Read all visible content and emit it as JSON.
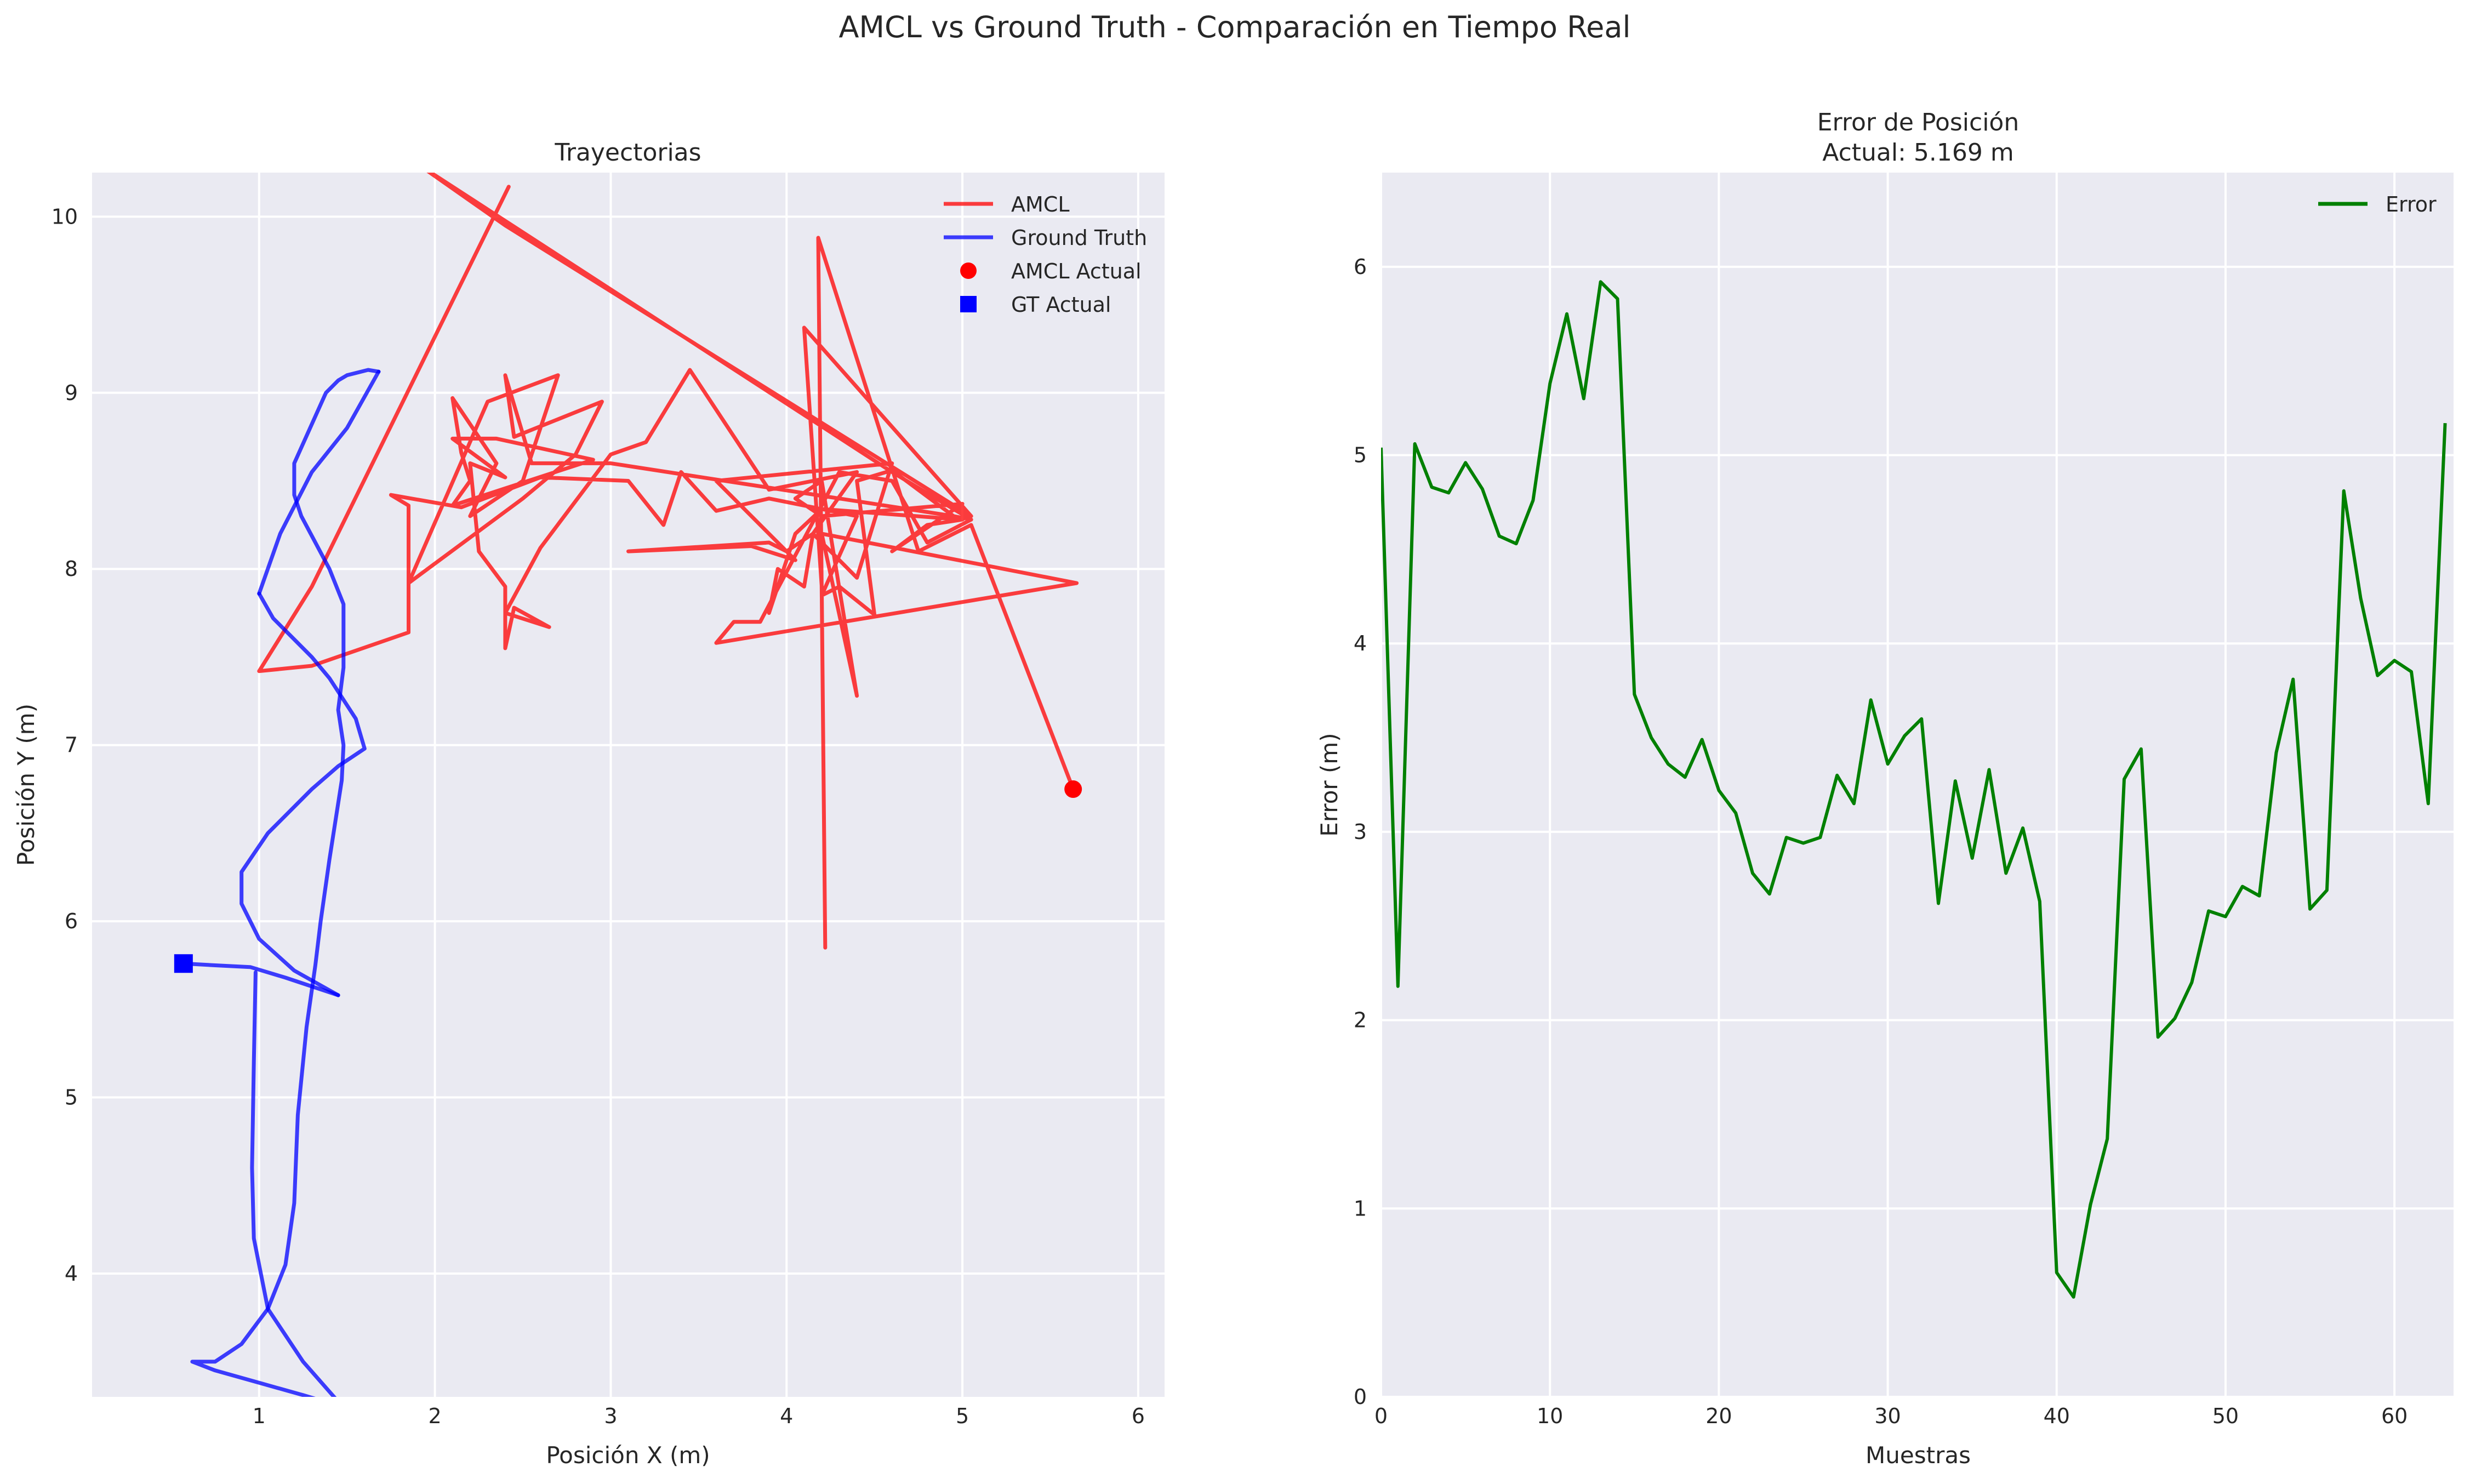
{
  "figure": {
    "suptitle": "AMCL vs Ground Truth - Comparación en Tiempo Real"
  },
  "chart_data": [
    {
      "type": "line",
      "title": "Trayectorias",
      "xlabel": "Posición X (m)",
      "ylabel": "Posición Y (m)",
      "xlim": [
        0.05,
        6.15
      ],
      "ylim": [
        3.3,
        10.25
      ],
      "xticks": [
        1,
        2,
        3,
        4,
        5,
        6
      ],
      "yticks": [
        4,
        5,
        6,
        7,
        8,
        9,
        10
      ],
      "grid": true,
      "legend_position": "top-right",
      "series": [
        {
          "name": "AMCL",
          "color": "#ff0000",
          "points": [
            [
              2.42,
              10.17
            ],
            [
              1.3,
              7.9
            ],
            [
              1.0,
              7.42
            ],
            [
              1.3,
              7.45
            ],
            [
              1.85,
              7.64
            ],
            [
              1.85,
              8.36
            ],
            [
              1.75,
              8.42
            ],
            [
              2.15,
              8.35
            ],
            [
              2.6,
              8.52
            ],
            [
              3.1,
              8.5
            ],
            [
              3.3,
              8.25
            ],
            [
              3.4,
              8.55
            ],
            [
              3.6,
              8.33
            ],
            [
              3.9,
              8.4
            ],
            [
              4.4,
              8.3
            ],
            [
              4.2,
              7.85
            ],
            [
              4.3,
              7.9
            ],
            [
              4.5,
              7.74
            ],
            [
              4.4,
              8.5
            ],
            [
              4.6,
              8.56
            ],
            [
              4.95,
              8.3
            ],
            [
              5.05,
              8.28
            ],
            [
              4.8,
              8.15
            ],
            [
              4.6,
              8.5
            ],
            [
              4.3,
              8.55
            ],
            [
              3.85,
              7.7
            ],
            [
              3.7,
              7.7
            ],
            [
              3.6,
              7.58
            ],
            [
              5.65,
              7.92
            ],
            [
              4.2,
              8.2
            ],
            [
              4.4,
              7.28
            ],
            [
              4.2,
              8.5
            ],
            [
              4.05,
              8.4
            ],
            [
              4.2,
              8.3
            ],
            [
              5.0,
              8.37
            ],
            [
              4.6,
              8.1
            ],
            [
              4.8,
              8.25
            ],
            [
              5.0,
              8.28
            ],
            [
              4.2,
              8.34
            ],
            [
              4.05,
              8.2
            ],
            [
              3.9,
              7.75
            ],
            [
              3.95,
              8.0
            ],
            [
              4.1,
              7.9
            ],
            [
              4.15,
              8.2
            ],
            [
              4.0,
              8.1
            ],
            [
              3.9,
              8.15
            ],
            [
              3.1,
              8.1
            ],
            [
              3.8,
              8.13
            ],
            [
              4.05,
              8.05
            ],
            [
              3.6,
              8.5
            ],
            [
              4.6,
              8.6
            ],
            [
              4.4,
              7.95
            ],
            [
              4.15,
              8.2
            ],
            [
              4.4,
              8.55
            ],
            [
              3.9,
              8.45
            ],
            [
              3.45,
              9.13
            ],
            [
              3.2,
              8.72
            ],
            [
              3.0,
              8.65
            ],
            [
              2.6,
              8.12
            ],
            [
              2.4,
              7.75
            ],
            [
              2.65,
              7.67
            ],
            [
              2.45,
              7.78
            ],
            [
              2.4,
              7.55
            ],
            [
              2.4,
              7.9
            ],
            [
              2.25,
              8.1
            ],
            [
              2.2,
              8.6
            ],
            [
              2.4,
              8.52
            ],
            [
              2.1,
              8.74
            ],
            [
              2.35,
              8.74
            ],
            [
              2.9,
              8.62
            ],
            [
              2.1,
              8.36
            ],
            [
              2.2,
              8.5
            ],
            [
              2.15,
              8.66
            ],
            [
              2.1,
              8.97
            ],
            [
              2.35,
              8.6
            ],
            [
              2.2,
              8.3
            ],
            [
              2.5,
              8.5
            ],
            [
              2.7,
              9.1
            ],
            [
              2.3,
              8.95
            ],
            [
              1.85,
              7.92
            ],
            [
              2.5,
              8.4
            ],
            [
              2.8,
              8.65
            ],
            [
              2.95,
              8.95
            ],
            [
              2.45,
              8.75
            ],
            [
              2.4,
              9.1
            ],
            [
              2.55,
              8.6
            ],
            [
              3.0,
              8.6
            ],
            [
              4.95,
              8.3
            ],
            [
              5.05,
              8.28
            ],
            [
              4.6,
              8.55
            ],
            [
              1.9,
              10.3
            ],
            [
              2.4,
              9.95
            ],
            [
              5.05,
              8.3
            ],
            [
              4.1,
              9.37
            ],
            [
              4.2,
              7.9
            ],
            [
              4.22,
              5.85
            ],
            [
              4.18,
              9.88
            ],
            [
              4.75,
              8.1
            ],
            [
              5.05,
              8.25
            ],
            [
              5.63,
              6.75
            ]
          ]
        },
        {
          "name": "Ground Truth",
          "color": "#0000ff",
          "points": [
            [
              1.68,
              9.12
            ],
            [
              1.62,
              9.13
            ],
            [
              1.5,
              9.1
            ],
            [
              1.45,
              9.07
            ],
            [
              1.38,
              9.0
            ],
            [
              1.2,
              8.6
            ],
            [
              1.2,
              8.42
            ],
            [
              1.24,
              8.3
            ],
            [
              1.4,
              8.0
            ],
            [
              1.48,
              7.8
            ],
            [
              1.48,
              7.44
            ],
            [
              1.45,
              7.2
            ],
            [
              1.48,
              7.0
            ],
            [
              1.47,
              6.8
            ],
            [
              1.4,
              6.35
            ],
            [
              1.35,
              6.0
            ],
            [
              1.32,
              5.75
            ],
            [
              1.27,
              5.4
            ],
            [
              1.22,
              4.9
            ],
            [
              1.2,
              4.4
            ],
            [
              1.15,
              4.05
            ],
            [
              1.05,
              3.8
            ],
            [
              0.9,
              3.6
            ],
            [
              0.75,
              3.5
            ],
            [
              0.62,
              3.5
            ],
            [
              0.75,
              3.45
            ],
            [
              1.0,
              3.38
            ],
            [
              1.25,
              3.31
            ],
            [
              1.35,
              3.28
            ],
            [
              1.47,
              3.25
            ]
          ]
        },
        {
          "name": "Ground Truth",
          "color": "#0000ff",
          "points": [
            [
              1.47,
              3.25
            ],
            [
              1.25,
              3.5
            ],
            [
              1.05,
              3.8
            ],
            [
              0.97,
              4.2
            ],
            [
              0.96,
              4.6
            ],
            [
              0.97,
              5.2
            ],
            [
              0.98,
              5.71
            ]
          ]
        },
        {
          "name": "Ground Truth",
          "color": "#0000ff",
          "points": [
            [
              1.68,
              9.12
            ],
            [
              1.5,
              8.8
            ],
            [
              1.3,
              8.55
            ],
            [
              1.12,
              8.2
            ],
            [
              1.0,
              7.86
            ]
          ]
        },
        {
          "name": "Ground Truth",
          "color": "#0000ff",
          "points": [
            [
              1.45,
              5.58
            ],
            [
              1.15,
              5.68
            ],
            [
              0.95,
              5.74
            ],
            [
              0.75,
              5.75
            ],
            [
              0.57,
              5.76
            ]
          ]
        },
        {
          "name": "Ground Truth",
          "color": "#0000ff",
          "points": [
            [
              1.45,
              5.58
            ],
            [
              1.2,
              5.72
            ],
            [
              1.0,
              5.9
            ],
            [
              0.9,
              6.1
            ],
            [
              0.9,
              6.28
            ],
            [
              1.05,
              6.5
            ],
            [
              1.3,
              6.75
            ],
            [
              1.45,
              6.88
            ],
            [
              1.6,
              6.98
            ],
            [
              1.55,
              7.15
            ],
            [
              1.4,
              7.38
            ],
            [
              1.3,
              7.5
            ],
            [
              1.18,
              7.62
            ],
            [
              1.08,
              7.72
            ],
            [
              1.0,
              7.86
            ]
          ]
        },
        {
          "name": "AMCL Actual",
          "color": "#ff0000",
          "marker": "circle",
          "x": 5.63,
          "y": 6.75
        },
        {
          "name": "GT Actual",
          "color": "#0000ff",
          "marker": "square",
          "x": 0.57,
          "y": 5.76
        }
      ]
    },
    {
      "type": "line",
      "title": "Error de Posición",
      "subtitle": "Actual: 5.169 m",
      "xlabel": "Muestras",
      "ylabel": "Error (m)",
      "xlim": [
        0,
        63.5
      ],
      "ylim": [
        0,
        6.5
      ],
      "xticks": [
        0,
        10,
        20,
        30,
        40,
        50,
        60
      ],
      "yticks": [
        0,
        1,
        2,
        3,
        4,
        5,
        6
      ],
      "grid": true,
      "legend_position": "top-right",
      "series": [
        {
          "name": "Error",
          "color": "#008000",
          "x": [
            0,
            1,
            2,
            3,
            4,
            5,
            6,
            7,
            8,
            9,
            10,
            11,
            12,
            13,
            14,
            15,
            16,
            17,
            18,
            19,
            20,
            21,
            22,
            23,
            24,
            25,
            26,
            27,
            28,
            29,
            30,
            31,
            32,
            33,
            34,
            35,
            36,
            37,
            38,
            39,
            40,
            41,
            42,
            43,
            44,
            45,
            46,
            47,
            48,
            49,
            50,
            51,
            52,
            53,
            54,
            55,
            56,
            57,
            58,
            59,
            60,
            61,
            62,
            63
          ],
          "values": [
            5.04,
            2.18,
            5.06,
            4.83,
            4.8,
            4.96,
            4.82,
            4.57,
            4.53,
            4.76,
            5.38,
            5.75,
            5.3,
            5.92,
            5.83,
            3.73,
            3.5,
            3.36,
            3.29,
            3.49,
            3.22,
            3.1,
            2.78,
            2.67,
            2.97,
            2.94,
            2.97,
            3.3,
            3.15,
            3.7,
            3.36,
            3.51,
            3.6,
            2.62,
            3.27,
            2.86,
            3.33,
            2.78,
            3.02,
            2.63,
            0.66,
            0.53,
            1.02,
            1.37,
            3.28,
            3.44,
            1.91,
            2.01,
            2.2,
            2.58,
            2.55,
            2.71,
            2.66,
            3.42,
            3.81,
            2.59,
            2.69,
            4.81,
            4.24,
            3.83,
            3.91,
            3.85,
            3.15,
            5.17
          ]
        }
      ]
    }
  ]
}
